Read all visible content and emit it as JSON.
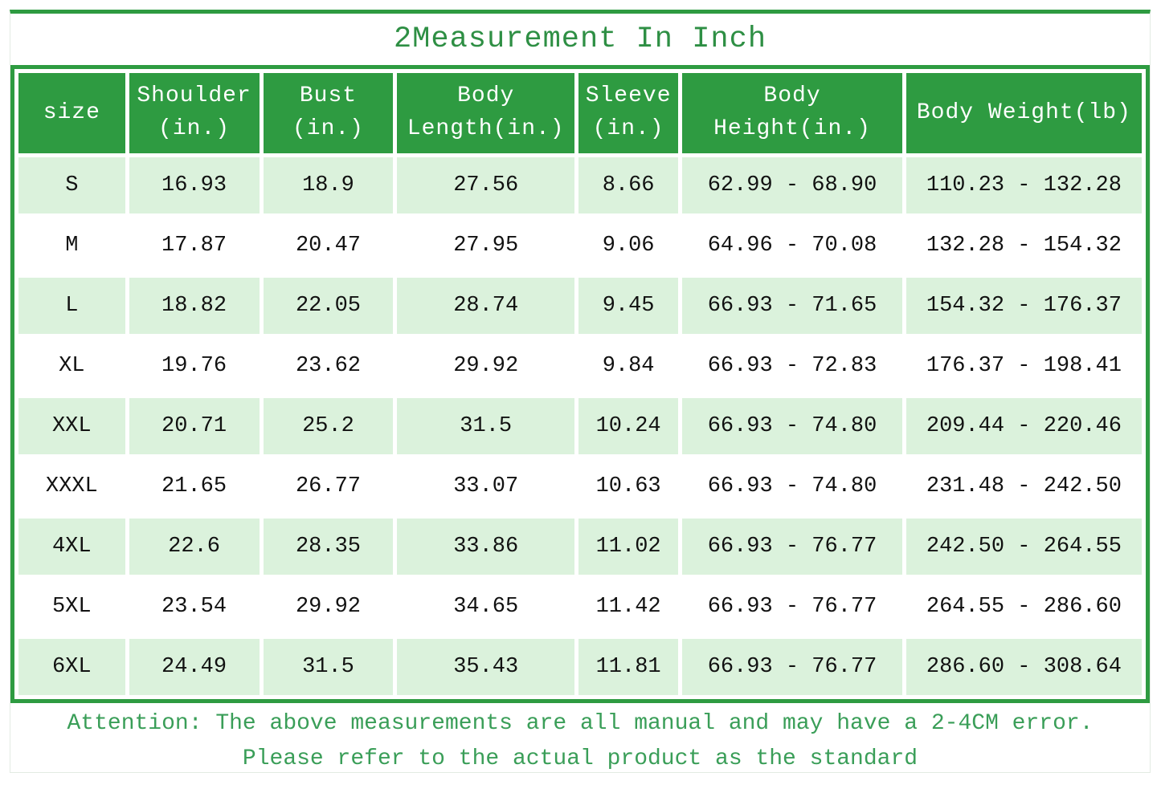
{
  "title": "2Measurement In Inch",
  "chart_data": {
    "type": "table",
    "title": "2Measurement In Inch",
    "columns": [
      "size",
      "Shoulder\n(in.)",
      "Bust\n(in.)",
      "Body\nLength(in.)",
      "Sleeve\n(in.)",
      "Body\nHeight(in.)",
      "Body Weight(lb)"
    ],
    "rows": [
      [
        "S",
        "16.93",
        "18.9",
        "27.56",
        "8.66",
        "62.99 - 68.90",
        "110.23 - 132.28"
      ],
      [
        "M",
        "17.87",
        "20.47",
        "27.95",
        "9.06",
        "64.96 - 70.08",
        "132.28 - 154.32"
      ],
      [
        "L",
        "18.82",
        "22.05",
        "28.74",
        "9.45",
        "66.93 - 71.65",
        "154.32 - 176.37"
      ],
      [
        "XL",
        "19.76",
        "23.62",
        "29.92",
        "9.84",
        "66.93 - 72.83",
        "176.37 - 198.41"
      ],
      [
        "XXL",
        "20.71",
        "25.2",
        "31.5",
        "10.24",
        "66.93 - 74.80",
        "209.44 - 220.46"
      ],
      [
        "XXXL",
        "21.65",
        "26.77",
        "33.07",
        "10.63",
        "66.93 - 74.80",
        "231.48 - 242.50"
      ],
      [
        "4XL",
        "22.6",
        "28.35",
        "33.86",
        "11.02",
        "66.93 - 76.77",
        "242.50 - 264.55"
      ],
      [
        "5XL",
        "23.54",
        "29.92",
        "34.65",
        "11.42",
        "66.93 - 76.77",
        "264.55 - 286.60"
      ],
      [
        "6XL",
        "24.49",
        "31.5",
        "35.43",
        "11.81",
        "66.93 - 76.77",
        "286.60 - 308.64"
      ]
    ],
    "layout": {
      "row_striping": "odd rows light green starting with S",
      "grid": "white gaps between cells, thick green outer border",
      "legend": "none"
    }
  },
  "footer": {
    "line1": "Attention: The above measurements are all manual and may have a 2-4CM error.",
    "line2": "Please refer to the actual product as the standard"
  },
  "colors": {
    "accent_green": "#2e9b41",
    "title_green": "#2e8f44",
    "footer_green": "#3a9e58",
    "row_alt_green": "#dbf2dc",
    "header_text": "#ffffff",
    "body_text": "#111111"
  }
}
